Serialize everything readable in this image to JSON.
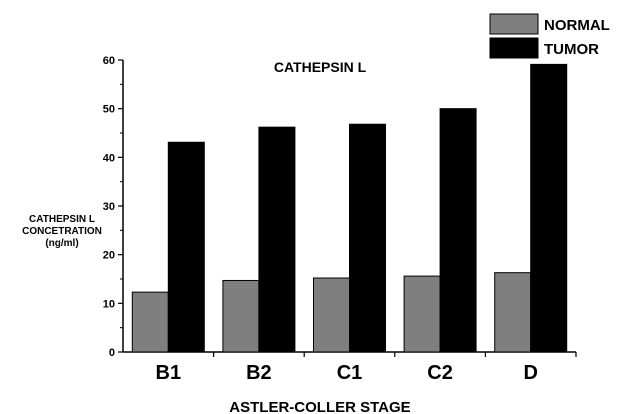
{
  "chart_data": {
    "type": "bar",
    "title": "CATHEPSIN L",
    "xlabel": "ASTLER-COLLER STAGE",
    "ylabel_lines": [
      "CATHEPSIN L",
      "CONCETRATION",
      "(ng/ml)"
    ],
    "categories": [
      "B1",
      "B2",
      "C1",
      "C2",
      "D"
    ],
    "series": [
      {
        "name": "NORMAL",
        "values": [
          12.3,
          14.7,
          15.2,
          15.6,
          16.3
        ]
      },
      {
        "name": "TUMOR",
        "values": [
          43.1,
          46.2,
          46.8,
          50.0,
          59.1
        ]
      }
    ],
    "ylim": [
      0,
      60
    ],
    "yticks": [
      0,
      10,
      20,
      30,
      40,
      50,
      60
    ],
    "legend_position": "top-right",
    "grid": false
  },
  "colors": {
    "NORMAL": "#7f7f7f",
    "TUMOR": "#000000",
    "axis": "#000000"
  }
}
